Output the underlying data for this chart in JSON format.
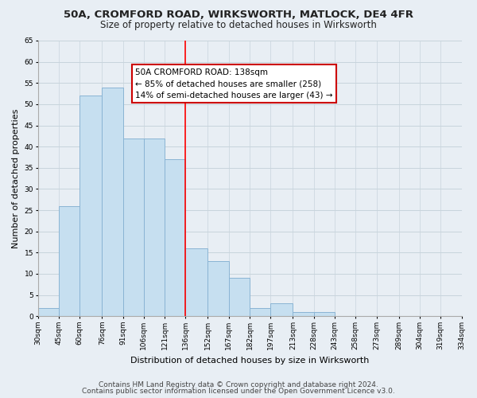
{
  "title1": "50A, CROMFORD ROAD, WIRKSWORTH, MATLOCK, DE4 4FR",
  "title2": "Size of property relative to detached houses in Wirksworth",
  "xlabel": "Distribution of detached houses by size in Wirksworth",
  "ylabel": "Number of detached properties",
  "footer1": "Contains HM Land Registry data © Crown copyright and database right 2024.",
  "footer2": "Contains public sector information licensed under the Open Government Licence v3.0.",
  "bin_edges": [
    30,
    45,
    60,
    76,
    91,
    106,
    121,
    136,
    152,
    167,
    182,
    197,
    213,
    228,
    243,
    258,
    273,
    289,
    304,
    319,
    334
  ],
  "bin_labels": [
    "30sqm",
    "45sqm",
    "60sqm",
    "76sqm",
    "91sqm",
    "106sqm",
    "121sqm",
    "136sqm",
    "152sqm",
    "167sqm",
    "182sqm",
    "197sqm",
    "213sqm",
    "228sqm",
    "243sqm",
    "258sqm",
    "273sqm",
    "289sqm",
    "304sqm",
    "319sqm",
    "334sqm"
  ],
  "counts": [
    2,
    26,
    52,
    54,
    42,
    42,
    37,
    16,
    13,
    9,
    2,
    3,
    1,
    1,
    0,
    0,
    0,
    0,
    0,
    0
  ],
  "bar_color": "#c6dff0",
  "bar_edge_color": "#8ab4d4",
  "reference_line_x": 136,
  "reference_line_color": "red",
  "annotation_title": "50A CROMFORD ROAD: 138sqm",
  "annotation_line1": "← 85% of detached houses are smaller (258)",
  "annotation_line2": "14% of semi-detached houses are larger (43) →",
  "annotation_box_edge_color": "#cc0000",
  "annotation_box_face_color": "white",
  "ylim": [
    0,
    65
  ],
  "yticks": [
    0,
    5,
    10,
    15,
    20,
    25,
    30,
    35,
    40,
    45,
    50,
    55,
    60,
    65
  ],
  "background_color": "#e8eef4",
  "plot_background_color": "#e8eef4",
  "grid_color": "#c8d4dc",
  "title_fontsize": 9.5,
  "subtitle_fontsize": 8.5,
  "axis_label_fontsize": 8,
  "tick_fontsize": 6.5,
  "annotation_fontsize": 7.5,
  "footer_fontsize": 6.5
}
